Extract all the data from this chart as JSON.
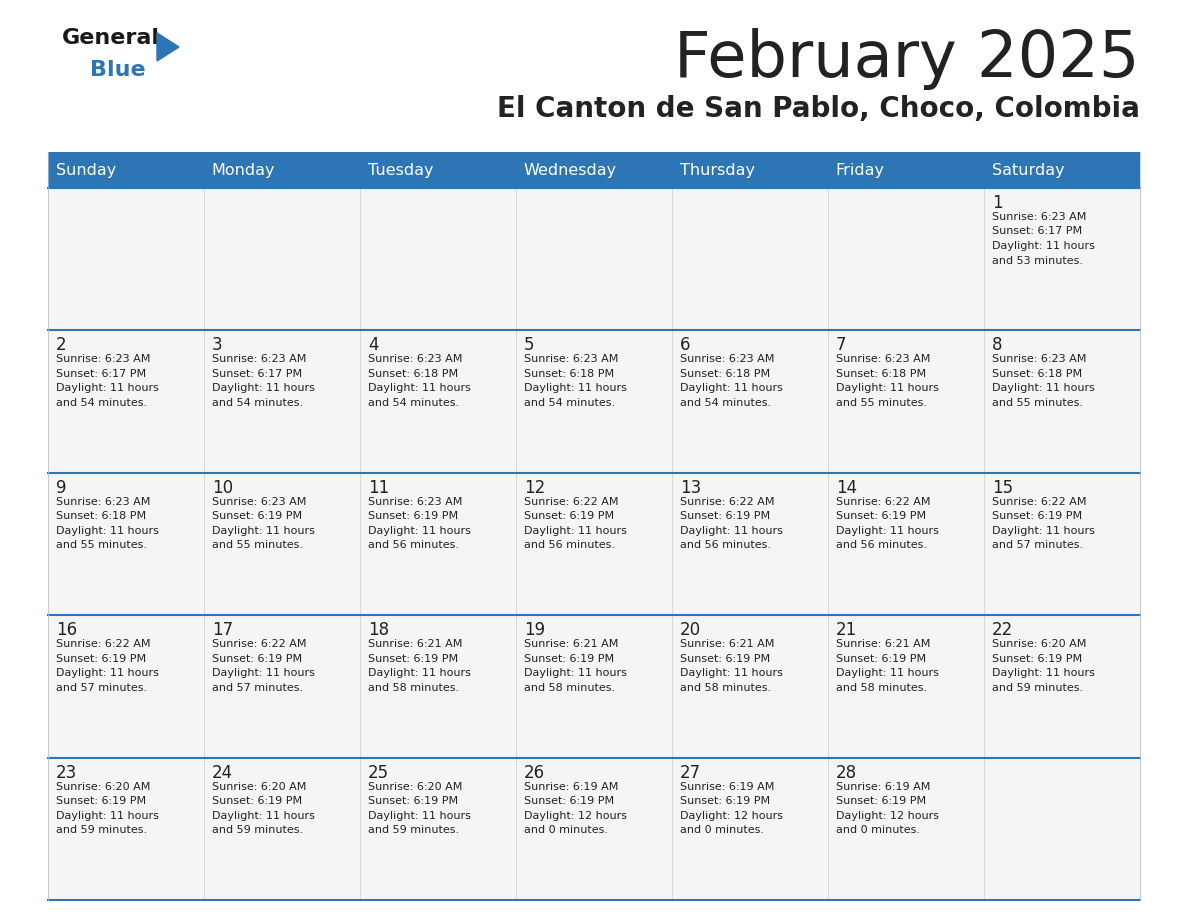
{
  "title": "February 2025",
  "subtitle": "El Canton de San Pablo, Choco, Colombia",
  "header_color": "#2E75B6",
  "header_text_color": "#FFFFFF",
  "cell_bg_even": "#F2F2F2",
  "cell_bg_odd": "#FFFFFF",
  "border_color": "#2E75B6",
  "text_color": "#222222",
  "days_of_week": [
    "Sunday",
    "Monday",
    "Tuesday",
    "Wednesday",
    "Thursday",
    "Friday",
    "Saturday"
  ],
  "calendar_data": [
    [
      null,
      null,
      null,
      null,
      null,
      null,
      {
        "day": "1",
        "sunrise": "6:23 AM",
        "sunset": "6:17 PM",
        "daylight_h": "11 hours",
        "daylight_m": "and 53 minutes."
      }
    ],
    [
      {
        "day": "2",
        "sunrise": "6:23 AM",
        "sunset": "6:17 PM",
        "daylight_h": "11 hours",
        "daylight_m": "and 54 minutes."
      },
      {
        "day": "3",
        "sunrise": "6:23 AM",
        "sunset": "6:17 PM",
        "daylight_h": "11 hours",
        "daylight_m": "and 54 minutes."
      },
      {
        "day": "4",
        "sunrise": "6:23 AM",
        "sunset": "6:18 PM",
        "daylight_h": "11 hours",
        "daylight_m": "and 54 minutes."
      },
      {
        "day": "5",
        "sunrise": "6:23 AM",
        "sunset": "6:18 PM",
        "daylight_h": "11 hours",
        "daylight_m": "and 54 minutes."
      },
      {
        "day": "6",
        "sunrise": "6:23 AM",
        "sunset": "6:18 PM",
        "daylight_h": "11 hours",
        "daylight_m": "and 54 minutes."
      },
      {
        "day": "7",
        "sunrise": "6:23 AM",
        "sunset": "6:18 PM",
        "daylight_h": "11 hours",
        "daylight_m": "and 55 minutes."
      },
      {
        "day": "8",
        "sunrise": "6:23 AM",
        "sunset": "6:18 PM",
        "daylight_h": "11 hours",
        "daylight_m": "and 55 minutes."
      }
    ],
    [
      {
        "day": "9",
        "sunrise": "6:23 AM",
        "sunset": "6:18 PM",
        "daylight_h": "11 hours",
        "daylight_m": "and 55 minutes."
      },
      {
        "day": "10",
        "sunrise": "6:23 AM",
        "sunset": "6:19 PM",
        "daylight_h": "11 hours",
        "daylight_m": "and 55 minutes."
      },
      {
        "day": "11",
        "sunrise": "6:23 AM",
        "sunset": "6:19 PM",
        "daylight_h": "11 hours",
        "daylight_m": "and 56 minutes."
      },
      {
        "day": "12",
        "sunrise": "6:22 AM",
        "sunset": "6:19 PM",
        "daylight_h": "11 hours",
        "daylight_m": "and 56 minutes."
      },
      {
        "day": "13",
        "sunrise": "6:22 AM",
        "sunset": "6:19 PM",
        "daylight_h": "11 hours",
        "daylight_m": "and 56 minutes."
      },
      {
        "day": "14",
        "sunrise": "6:22 AM",
        "sunset": "6:19 PM",
        "daylight_h": "11 hours",
        "daylight_m": "and 56 minutes."
      },
      {
        "day": "15",
        "sunrise": "6:22 AM",
        "sunset": "6:19 PM",
        "daylight_h": "11 hours",
        "daylight_m": "and 57 minutes."
      }
    ],
    [
      {
        "day": "16",
        "sunrise": "6:22 AM",
        "sunset": "6:19 PM",
        "daylight_h": "11 hours",
        "daylight_m": "and 57 minutes."
      },
      {
        "day": "17",
        "sunrise": "6:22 AM",
        "sunset": "6:19 PM",
        "daylight_h": "11 hours",
        "daylight_m": "and 57 minutes."
      },
      {
        "day": "18",
        "sunrise": "6:21 AM",
        "sunset": "6:19 PM",
        "daylight_h": "11 hours",
        "daylight_m": "and 58 minutes."
      },
      {
        "day": "19",
        "sunrise": "6:21 AM",
        "sunset": "6:19 PM",
        "daylight_h": "11 hours",
        "daylight_m": "and 58 minutes."
      },
      {
        "day": "20",
        "sunrise": "6:21 AM",
        "sunset": "6:19 PM",
        "daylight_h": "11 hours",
        "daylight_m": "and 58 minutes."
      },
      {
        "day": "21",
        "sunrise": "6:21 AM",
        "sunset": "6:19 PM",
        "daylight_h": "11 hours",
        "daylight_m": "and 58 minutes."
      },
      {
        "day": "22",
        "sunrise": "6:20 AM",
        "sunset": "6:19 PM",
        "daylight_h": "11 hours",
        "daylight_m": "and 59 minutes."
      }
    ],
    [
      {
        "day": "23",
        "sunrise": "6:20 AM",
        "sunset": "6:19 PM",
        "daylight_h": "11 hours",
        "daylight_m": "and 59 minutes."
      },
      {
        "day": "24",
        "sunrise": "6:20 AM",
        "sunset": "6:19 PM",
        "daylight_h": "11 hours",
        "daylight_m": "and 59 minutes."
      },
      {
        "day": "25",
        "sunrise": "6:20 AM",
        "sunset": "6:19 PM",
        "daylight_h": "11 hours",
        "daylight_m": "and 59 minutes."
      },
      {
        "day": "26",
        "sunrise": "6:19 AM",
        "sunset": "6:19 PM",
        "daylight_h": "12 hours",
        "daylight_m": "and 0 minutes."
      },
      {
        "day": "27",
        "sunrise": "6:19 AM",
        "sunset": "6:19 PM",
        "daylight_h": "12 hours",
        "daylight_m": "and 0 minutes."
      },
      {
        "day": "28",
        "sunrise": "6:19 AM",
        "sunset": "6:19 PM",
        "daylight_h": "12 hours",
        "daylight_m": "and 0 minutes."
      },
      null
    ]
  ],
  "logo_text_general": "General",
  "logo_text_blue": "Blue",
  "logo_triangle_color": "#2E75B6",
  "logo_text_color": "#1a1a1a"
}
